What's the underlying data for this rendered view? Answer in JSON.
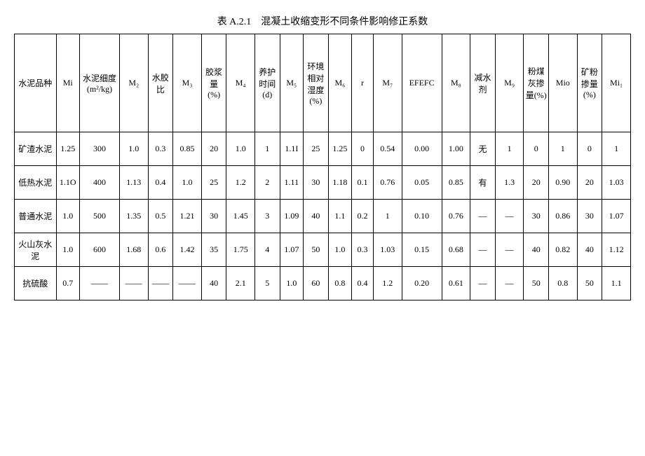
{
  "title": "表 A.2.1　混凝土收缩变形不同条件影响修正系数",
  "headers": {
    "c0": "水泥品种",
    "c1": "Mi",
    "c2": "水泥细度 (m²/kg)",
    "c3": "M₂",
    "c4": "水胶比",
    "c5": "M₃",
    "c6": "胶浆量 (%)",
    "c7": "M₄",
    "c8": "养护时间 (d)",
    "c9": "M₅",
    "c10": "环境相对湿度 (%)",
    "c11": "M₆",
    "c12": "r",
    "c13": "M₇",
    "c14": "EFEFC",
    "c15": "M₈",
    "c16": "减水剂",
    "c17": "M₉",
    "c18": "粉煤灰掺量(%)",
    "c19": "Mio",
    "c20": "矿粉掺量 (%)",
    "c21": "Mi₁"
  },
  "rows": [
    {
      "c0": "矿渣水泥",
      "c1": "1.25",
      "c2": "300",
      "c3": "1.0",
      "c4": "0.3",
      "c5": "0.85",
      "c6": "20",
      "c7": "1.0",
      "c8": "1",
      "c9": "1.1I",
      "c10": "25",
      "c11": "1.25",
      "c12": "0",
      "c13": "0.54",
      "c14": "0.00",
      "c15": "1.00",
      "c16": "无",
      "c17": "1",
      "c18": "0",
      "c19": "1",
      "c20": "0",
      "c21": "1"
    },
    {
      "c0": "低热水泥",
      "c1": "1.1O",
      "c2": "400",
      "c3": "1.13",
      "c4": "0.4",
      "c5": "1.0",
      "c6": "25",
      "c7": "1.2",
      "c8": "2",
      "c9": "1.11",
      "c10": "30",
      "c11": "1.18",
      "c12": "0.1",
      "c13": "0.76",
      "c14": "0.05",
      "c15": "0.85",
      "c16": "有",
      "c17": "1.3",
      "c18": "20",
      "c19": "0.90",
      "c20": "20",
      "c21": "1.03"
    },
    {
      "c0": "普通水泥",
      "c1": "1.0",
      "c2": "500",
      "c3": "1.35",
      "c4": "0.5",
      "c5": "1.21",
      "c6": "30",
      "c7": "1.45",
      "c8": "3",
      "c9": "1.09",
      "c10": "40",
      "c11": "1.1",
      "c12": "0.2",
      "c13": "1",
      "c14": "0.10",
      "c15": "0.76",
      "c16": "—",
      "c17": "—",
      "c18": "30",
      "c19": "0.86",
      "c20": "30",
      "c21": "1.07"
    },
    {
      "c0": "火山灰水泥",
      "c1": "1.0",
      "c2": "600",
      "c3": "1.68",
      "c4": "0.6",
      "c5": "1.42",
      "c6": "35",
      "c7": "1.75",
      "c8": "4",
      "c9": "1.07",
      "c10": "50",
      "c11": "1.0",
      "c12": "0.3",
      "c13": "1.03",
      "c14": "0.15",
      "c15": "0.68",
      "c16": "—",
      "c17": "—",
      "c18": "40",
      "c19": "0.82",
      "c20": "40",
      "c21": "1.12"
    },
    {
      "c0": "抗硫酸",
      "c1": "0.7",
      "c2": "——",
      "c3": "——",
      "c4": "——",
      "c5": "——",
      "c6": "40",
      "c7": "2.1",
      "c8": "5",
      "c9": "1.0",
      "c10": "60",
      "c11": "0.8",
      "c12": "0.4",
      "c13": "1.2",
      "c14": "0.20",
      "c15": "0.61",
      "c16": "—",
      "c17": "—",
      "c18": "50",
      "c19": "0.8",
      "c20": "50",
      "c21": "1.1"
    }
  ]
}
